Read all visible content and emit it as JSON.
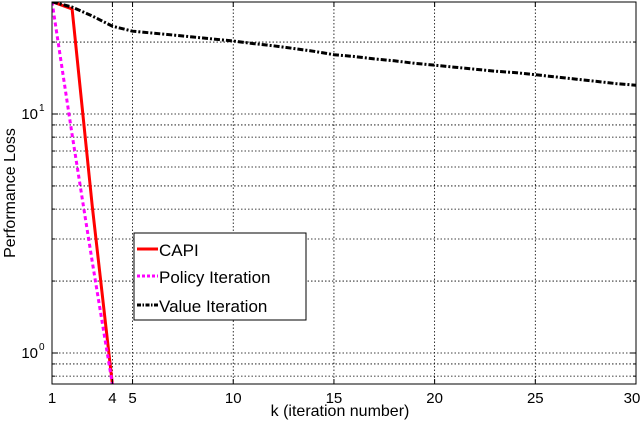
{
  "chart_data": {
    "type": "line",
    "title": "",
    "xlabel": "k (iteration number)",
    "ylabel": "Performance Loss",
    "xscale": "linear",
    "yscale": "log",
    "xlim": [
      1,
      30
    ],
    "ylim": [
      0.74,
      29.5
    ],
    "grid": true,
    "legend_position": "center-left, lower half",
    "x_ticks": [
      1,
      4,
      5,
      10,
      15,
      20,
      25,
      30
    ],
    "y_major_ticks": [
      {
        "value": 1,
        "label_base": "10",
        "label_exp": "0"
      },
      {
        "value": 10,
        "label_base": "10",
        "label_exp": "1"
      }
    ],
    "y_minor_gridlines": [
      0.8,
      0.9,
      2,
      3,
      4,
      5,
      6,
      7,
      8,
      9,
      20
    ],
    "series": [
      {
        "name": "CAPI",
        "color": "#ff0000",
        "style": "solid",
        "x": [
          1,
          2,
          3,
          4
        ],
        "values": [
          29.5,
          27.5,
          4.1,
          0.74
        ]
      },
      {
        "name": "Policy Iteration",
        "color": "#ff00ff",
        "style": "dashed",
        "x": [
          1,
          2,
          3,
          4
        ],
        "values": [
          29.5,
          8.2,
          2.4,
          0.74
        ]
      },
      {
        "name": "Value Iteration",
        "color": "#000000",
        "style": "dash-dot",
        "x": [
          1,
          2,
          3,
          4,
          5,
          6,
          7,
          8,
          9,
          10,
          11,
          12,
          13,
          14,
          15,
          16,
          17,
          18,
          19,
          20,
          21,
          22,
          23,
          24,
          25,
          26,
          27,
          28,
          29,
          30
        ],
        "values": [
          29.5,
          28.0,
          25.7,
          23.3,
          22.2,
          21.8,
          21.4,
          21.0,
          20.6,
          20.2,
          19.7,
          19.3,
          18.8,
          18.3,
          17.7,
          17.4,
          17.0,
          16.7,
          16.3,
          16.0,
          15.7,
          15.4,
          15.1,
          14.9,
          14.6,
          14.3,
          14.0,
          13.7,
          13.4,
          13.2
        ]
      }
    ]
  },
  "legend": {
    "items": [
      {
        "label": "CAPI"
      },
      {
        "label": "Policy Iteration"
      },
      {
        "label": "Value Iteration"
      }
    ]
  }
}
